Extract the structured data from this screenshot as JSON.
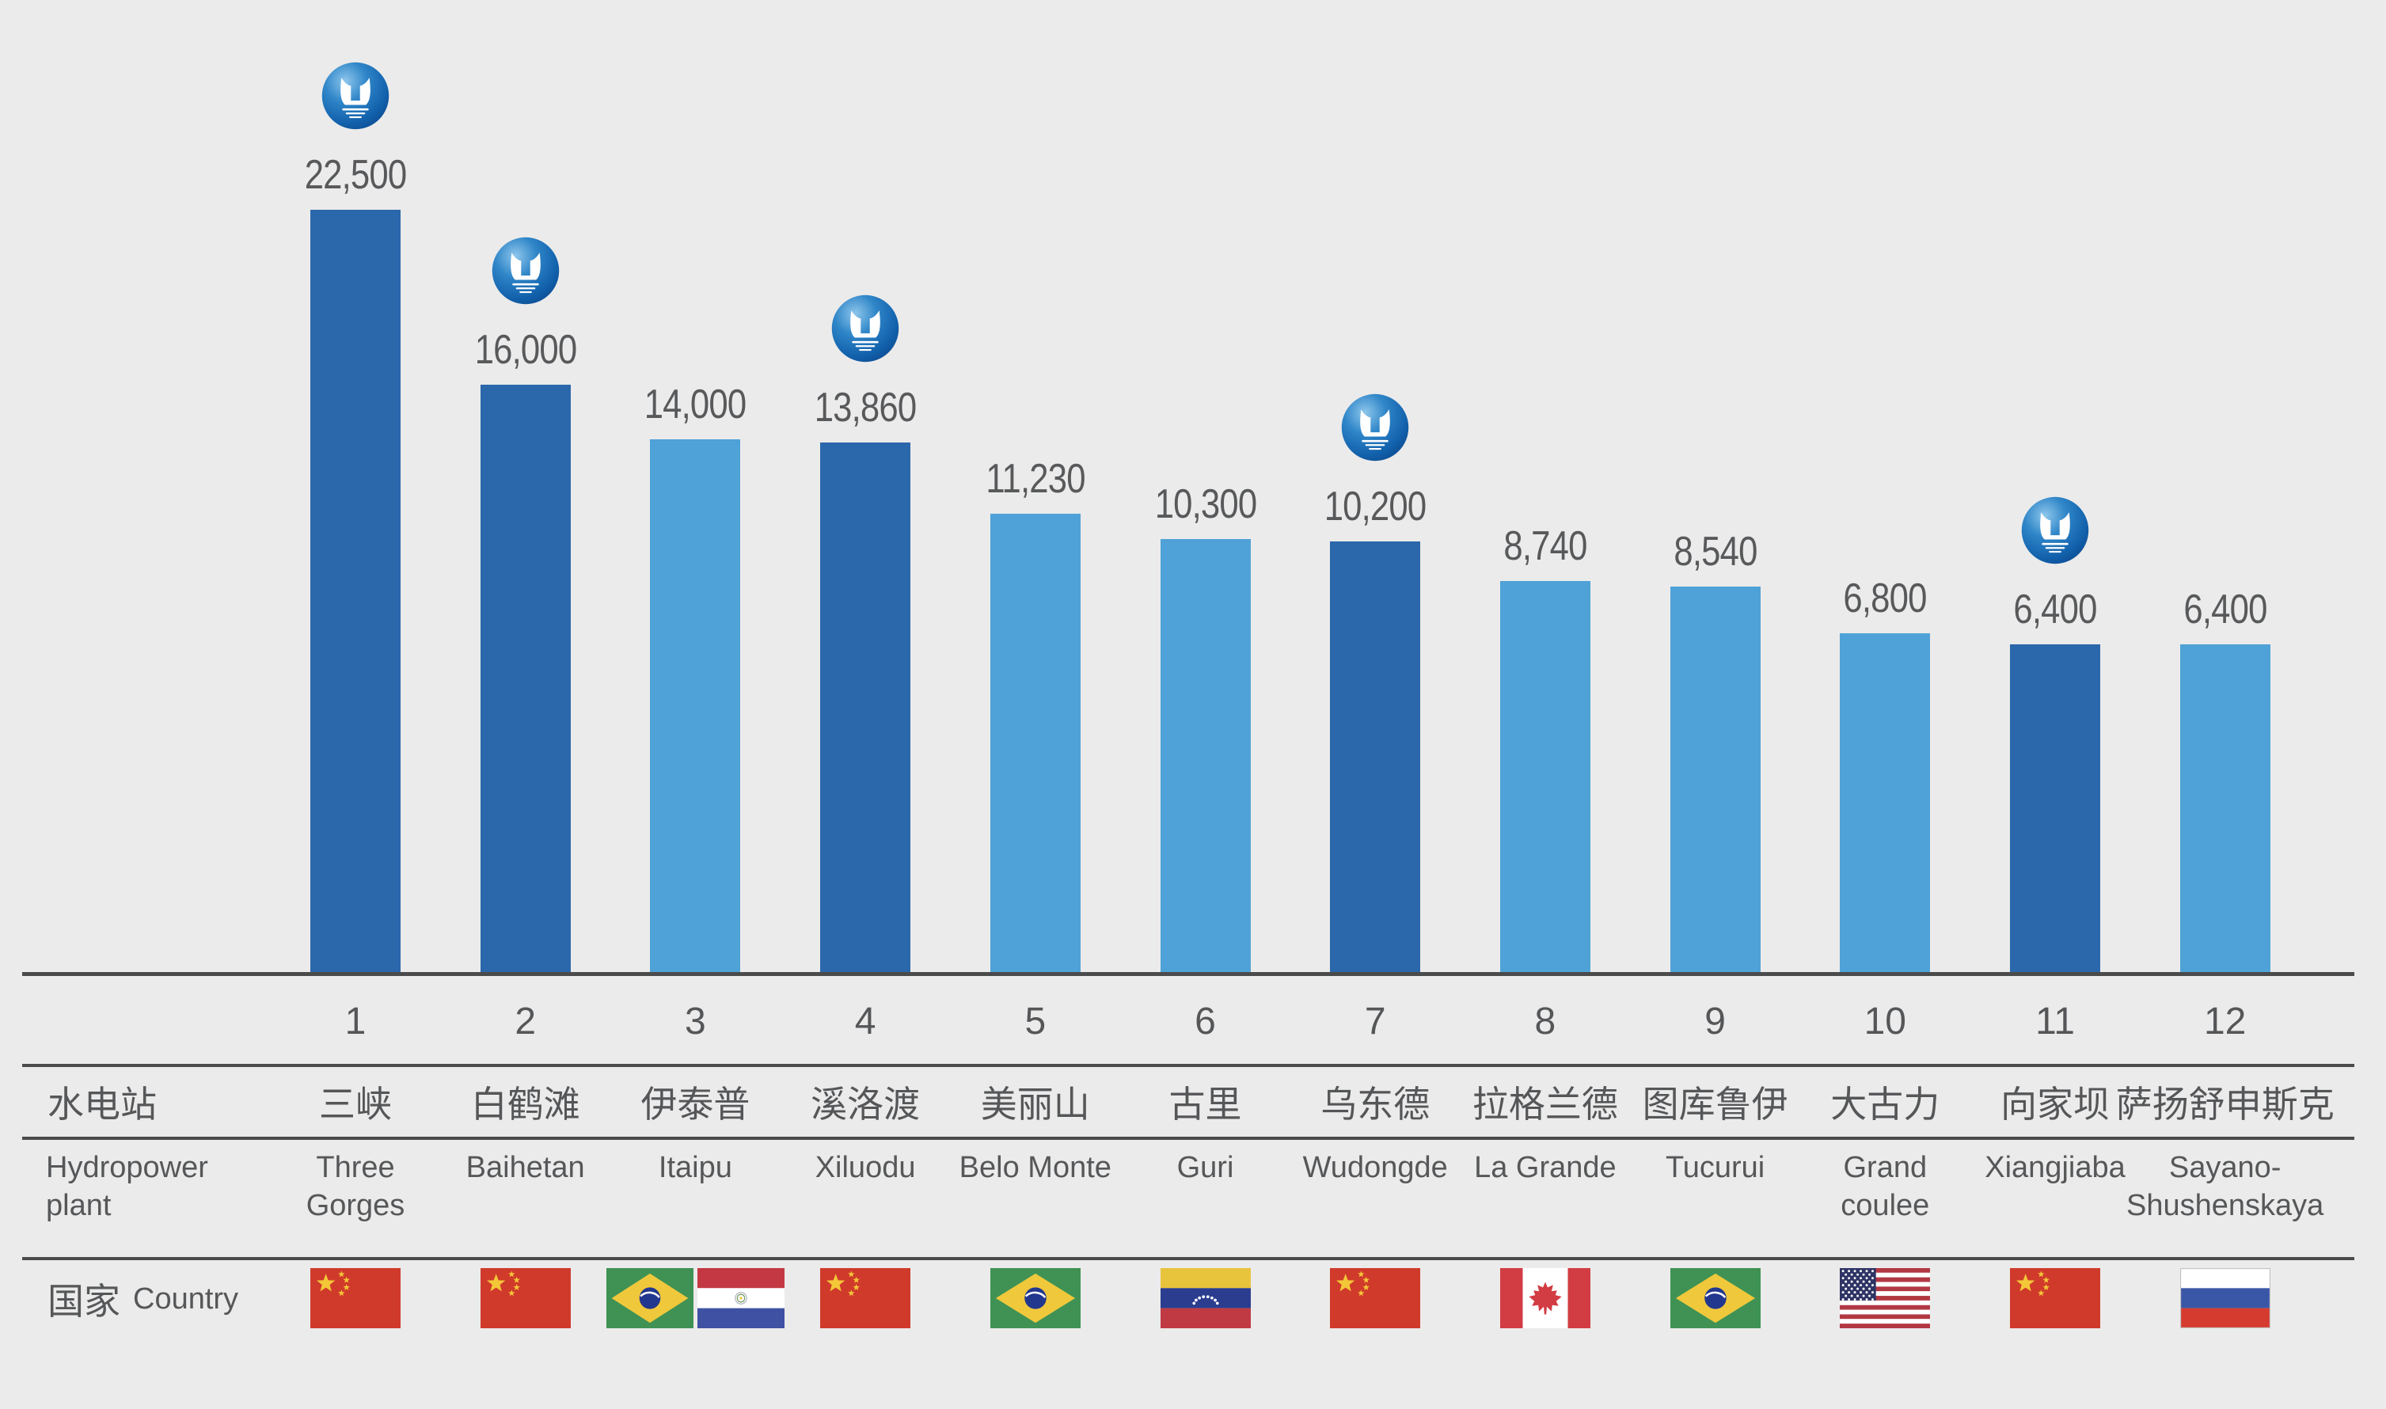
{
  "page": {
    "background": "#ebebeb"
  },
  "table": {
    "row_labels": {
      "plant_zh": "水电站",
      "plant_en": "Hydropower\nplant",
      "country_zh": "国家",
      "country_en": "Country"
    }
  },
  "icons": {
    "ctg-logo-icon": "glossy blue sphere with white dam-shaped U and water lines",
    "flag-icons": [
      "china",
      "brazil",
      "paraguay",
      "venezuela",
      "canada",
      "usa",
      "russia"
    ]
  },
  "chart_data": {
    "type": "bar",
    "title": "",
    "xlabel": "",
    "ylabel": "",
    "grid": false,
    "legend_position": "none",
    "categories": [
      "1",
      "2",
      "3",
      "4",
      "5",
      "6",
      "7",
      "8",
      "9",
      "10",
      "11",
      "12"
    ],
    "values": [
      22500,
      16000,
      14000,
      13860,
      11230,
      10300,
      10200,
      8740,
      8540,
      6800,
      6400,
      6400
    ],
    "colors": {
      "bar_dark": "#2b67ab",
      "bar_light": "#4fa2d8",
      "background": "#ebebeb",
      "divider": "#4b4b4b",
      "text": "#58595b",
      "logo_blue": "#1261ac"
    },
    "plants": [
      {
        "rank": "1",
        "name_zh": "三峡",
        "name_en": "Three\nGorges",
        "value": 22500,
        "value_label": "22,500",
        "ctg_logo": true,
        "bar_color": "dark",
        "countries": [
          "china"
        ]
      },
      {
        "rank": "2",
        "name_zh": "白鹤滩",
        "name_en": "Baihetan",
        "value": 16000,
        "value_label": "16,000",
        "ctg_logo": true,
        "bar_color": "dark",
        "countries": [
          "china"
        ]
      },
      {
        "rank": "3",
        "name_zh": "伊泰普",
        "name_en": "Itaipu",
        "value": 14000,
        "value_label": "14,000",
        "ctg_logo": false,
        "bar_color": "light",
        "countries": [
          "brazil",
          "paraguay"
        ]
      },
      {
        "rank": "4",
        "name_zh": "溪洛渡",
        "name_en": "Xiluodu",
        "value": 13860,
        "value_label": "13,860",
        "ctg_logo": true,
        "bar_color": "dark",
        "countries": [
          "china"
        ]
      },
      {
        "rank": "5",
        "name_zh": "美丽山",
        "name_en": "Belo Monte",
        "value": 11230,
        "value_label": "11,230",
        "ctg_logo": false,
        "bar_color": "light",
        "countries": [
          "brazil"
        ]
      },
      {
        "rank": "6",
        "name_zh": "古里",
        "name_en": "Guri",
        "value": 10300,
        "value_label": "10,300",
        "ctg_logo": false,
        "bar_color": "light",
        "countries": [
          "venezuela"
        ]
      },
      {
        "rank": "7",
        "name_zh": "乌东德",
        "name_en": "Wudongde",
        "value": 10200,
        "value_label": "10,200",
        "ctg_logo": true,
        "bar_color": "dark",
        "countries": [
          "china"
        ]
      },
      {
        "rank": "8",
        "name_zh": "拉格兰德",
        "name_en": "La Grande",
        "value": 8740,
        "value_label": "8,740",
        "ctg_logo": false,
        "bar_color": "light",
        "countries": [
          "canada"
        ]
      },
      {
        "rank": "9",
        "name_zh": "图库鲁伊",
        "name_en": "Tucurui",
        "value": 8540,
        "value_label": "8,540",
        "ctg_logo": false,
        "bar_color": "light",
        "countries": [
          "brazil"
        ]
      },
      {
        "rank": "10",
        "name_zh": "大古力",
        "name_en": "Grand\ncoulee",
        "value": 6800,
        "value_label": "6,800",
        "ctg_logo": false,
        "bar_color": "light",
        "countries": [
          "usa"
        ]
      },
      {
        "rank": "11",
        "name_zh": "向家坝",
        "name_en": "Xiangjiaba",
        "value": 6400,
        "value_label": "6,400",
        "ctg_logo": true,
        "bar_color": "dark",
        "countries": [
          "china"
        ]
      },
      {
        "rank": "12",
        "name_zh": "萨扬舒申斯克",
        "name_en": "Sayano-\nShushenskaya",
        "value": 6400,
        "value_label": "6,400",
        "ctg_logo": false,
        "bar_color": "light",
        "countries": [
          "russia"
        ]
      }
    ]
  }
}
